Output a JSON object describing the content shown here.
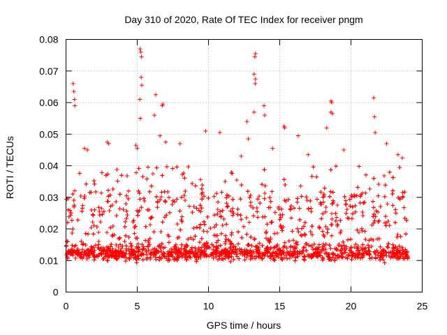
{
  "chart_data": {
    "type": "scatter",
    "title": "Day 310 of 2020, Rate Of TEC Index for receiver pngm",
    "xlabel": "GPS time / hours",
    "ylabel": "ROTI / TECUs",
    "xlim": [
      0,
      25
    ],
    "ylim": [
      0,
      0.08
    ],
    "xticks": [
      0,
      5,
      10,
      15,
      20,
      25
    ],
    "yticks": [
      0,
      0.01,
      0.02,
      0.03,
      0.04,
      0.05,
      0.06,
      0.07,
      0.08
    ],
    "xtick_labels": [
      "0",
      "5",
      "10",
      "15",
      "20",
      "25"
    ],
    "ytick_labels": [
      "0",
      "0.01",
      "0.02",
      "0.03",
      "0.04",
      "0.05",
      "0.06",
      "0.07",
      "0.08"
    ],
    "grid": true,
    "marker": "plus",
    "color": "#ff0000",
    "data_range_x": [
      0,
      24
    ],
    "series": [
      {
        "name": "ROTI",
        "points": [
          [
            0.5,
            0.066
          ],
          [
            0.55,
            0.0635
          ],
          [
            0.6,
            0.061
          ],
          [
            0.62,
            0.059
          ],
          [
            5.2,
            0.077
          ],
          [
            5.25,
            0.076
          ],
          [
            5.3,
            0.0745
          ],
          [
            5.28,
            0.068
          ],
          [
            5.32,
            0.0655
          ],
          [
            5.18,
            0.061
          ],
          [
            5.22,
            0.055
          ],
          [
            6.3,
            0.0625
          ],
          [
            6.8,
            0.0595
          ],
          [
            6.75,
            0.059
          ],
          [
            6.2,
            0.056
          ],
          [
            13.3,
            0.0755
          ],
          [
            13.25,
            0.0745
          ],
          [
            13.2,
            0.069
          ],
          [
            13.3,
            0.0675
          ],
          [
            13.28,
            0.066
          ],
          [
            13.2,
            0.057
          ],
          [
            13.9,
            0.059
          ],
          [
            13.95,
            0.056
          ],
          [
            18.6,
            0.0605
          ],
          [
            18.65,
            0.06
          ],
          [
            18.6,
            0.057
          ],
          [
            18.7,
            0.0565
          ],
          [
            21.6,
            0.0615
          ],
          [
            21.65,
            0.0555
          ],
          [
            21.7,
            0.0505
          ],
          [
            15.3,
            0.0525
          ],
          [
            15.35,
            0.052
          ],
          [
            9.8,
            0.051
          ],
          [
            10.8,
            0.0505
          ],
          [
            12.7,
            0.054
          ],
          [
            12.8,
            0.0485
          ],
          [
            18.3,
            0.052
          ],
          [
            16.3,
            0.0495
          ],
          [
            2.9,
            0.0475
          ],
          [
            3.0,
            0.047
          ],
          [
            4.9,
            0.0465
          ],
          [
            5.0,
            0.0455
          ],
          [
            6.6,
            0.0495
          ],
          [
            7.0,
            0.0475
          ],
          [
            1.3,
            0.0455
          ],
          [
            1.5,
            0.045
          ],
          [
            8.0,
            0.047
          ],
          [
            12.3,
            0.043
          ],
          [
            14.5,
            0.0455
          ],
          [
            17.0,
            0.0435
          ],
          [
            19.5,
            0.045
          ],
          [
            22.5,
            0.047
          ],
          [
            23.3,
            0.0435
          ],
          [
            23.6,
            0.0425
          ]
        ]
      }
    ]
  }
}
